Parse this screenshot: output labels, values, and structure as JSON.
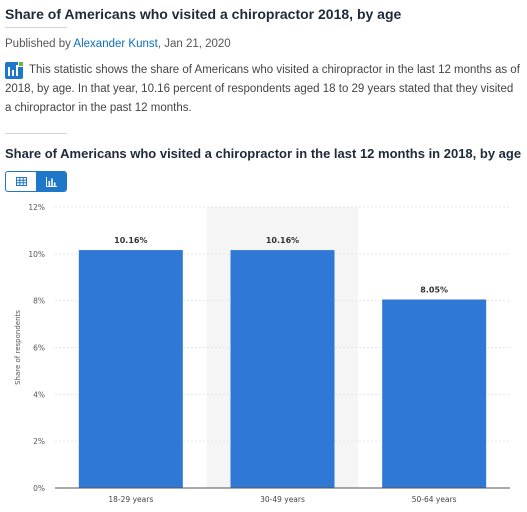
{
  "header": {
    "title": "Share of Americans who visited a chiropractor 2018, by age",
    "published_prefix": "Published by",
    "author": "Alexander Kunst",
    "date": ", Jan 21, 2020"
  },
  "description": "This statistic shows the share of Americans who visited a chiropractor in the last 12 months as of 2018, by age. In that year, 10.16 percent of respondents aged 18 to 29 years stated that they visited a chiropractor in the past 12 months.",
  "chart_heading": "Share of Americans who visited a chiropractor in the last 12 months in 2018, by age",
  "toggles": {
    "table_icon": "table-icon",
    "chart_icon": "bar-chart-icon",
    "active": "chart"
  },
  "colors": {
    "bar": "#2f78d6",
    "accent": "#1f77c9",
    "highlight_band": "#f5f5f5",
    "grid": "#e6e6e6"
  },
  "chart_data": {
    "type": "bar",
    "title": "",
    "categories": [
      "18-29 years",
      "30-49 years",
      "50-64 years"
    ],
    "values": [
      10.16,
      10.16,
      8.05
    ],
    "data_labels": [
      "10.16%",
      "10.16%",
      "8.05%"
    ],
    "xlabel": "",
    "ylabel": "Share of respondents",
    "ylim": [
      0,
      12
    ],
    "yticks": [
      0,
      2,
      4,
      6,
      8,
      10,
      12
    ],
    "ytick_labels": [
      "0%",
      "2%",
      "4%",
      "6%",
      "8%",
      "10%",
      "12%"
    ],
    "grid": true,
    "highlighted_category": "30-49 years"
  }
}
